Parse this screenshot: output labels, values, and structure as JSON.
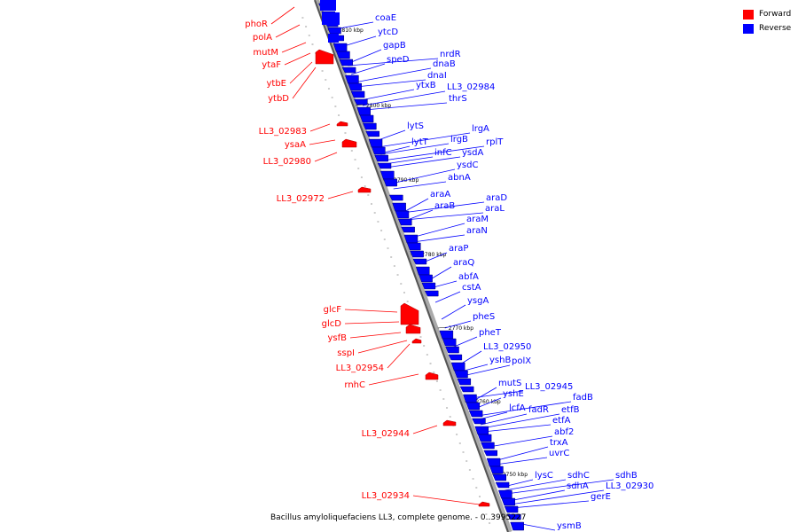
{
  "legend": {
    "forward_label": "Forward",
    "reverse_label": "Reverse",
    "forward_color": "#ff0000",
    "reverse_color": "#0000ff"
  },
  "caption": "Bacillus amyloliquefaciens LL3, complete genome. - 0..3995227",
  "tick_labels": [
    "2810 kbp",
    "2800 kbp",
    "2790 kbp",
    "2780 kbp",
    "2770 kbp",
    "2760 kbp",
    "2750 kbp"
  ],
  "forward_genes": [
    "phoR",
    "polA",
    "mutM",
    "ytaF",
    "ytbE",
    "ytbD",
    "LL3_02983",
    "ysaA",
    "LL3_02980",
    "LL3_02972",
    "glcF",
    "glcD",
    "ysfB",
    "sspI",
    "LL3_02954",
    "rnhC",
    "LL3_02944",
    "LL3_02934"
  ],
  "reverse_genes": [
    "coaE",
    "ytcD",
    "gapB",
    "nrdR",
    "speD",
    "dnaB",
    "dnaI",
    "ytxB",
    "LL3_02984",
    "thrS",
    "lytS",
    "lrgA",
    "lytT",
    "lrgB",
    "rplT",
    "infC",
    "ysdA",
    "ysdC",
    "abnA",
    "araD",
    "araA",
    "araL",
    "araB",
    "araM",
    "araN",
    "araP",
    "araQ",
    "abfA",
    "cstA",
    "ysgA",
    "pheS",
    "pheT",
    "LL3_02950",
    "yshB",
    "polX",
    "mutS",
    "LL3_02945",
    "yshE",
    "fadB",
    "lcfA",
    "fadR",
    "etfB",
    "etfA",
    "abf2",
    "trxA",
    "uvrC",
    "sdhC",
    "sdhB",
    "lysC",
    "sdhA",
    "LL3_02930",
    "gerE",
    "ysmB"
  ]
}
